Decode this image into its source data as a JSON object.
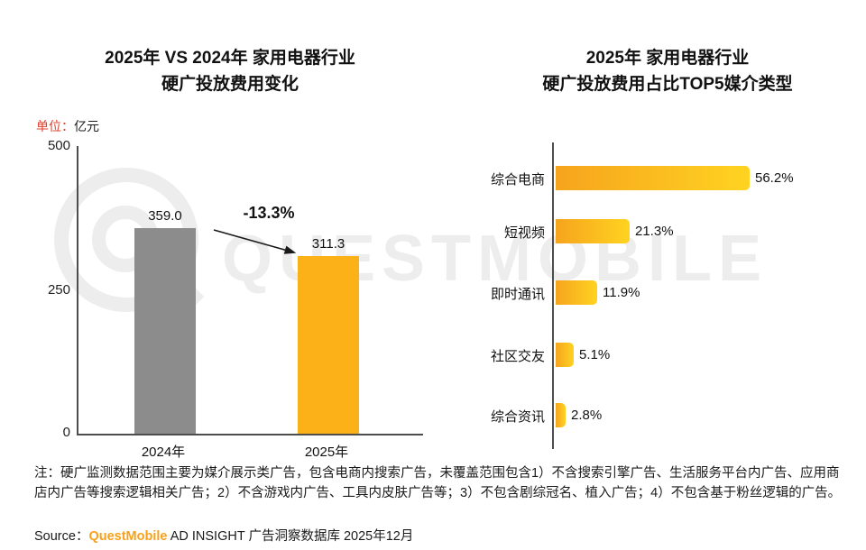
{
  "watermark": {
    "text": "QUESTMOBILE"
  },
  "chart_data": [
    {
      "type": "bar",
      "title": "2025年 VS 2024年 家用电器行业 硬广投放费用变化",
      "title_lines": [
        "2025年 VS 2024年 家用电器行业",
        "硬广投放费用变化"
      ],
      "unit_prefix": "单位：",
      "unit": "亿元",
      "categories": [
        "2024年",
        "2025年"
      ],
      "values": [
        359.0,
        311.3
      ],
      "value_labels": [
        "359.0",
        "311.3"
      ],
      "bar_colors": [
        "#8c8c8c",
        "#fbb117"
      ],
      "ylim": [
        0,
        500
      ],
      "ytick_labels": [
        "500",
        "250",
        "0"
      ],
      "annotation": "-13.3%",
      "grid": false,
      "legend": "none"
    },
    {
      "type": "bar",
      "orientation": "horizontal",
      "title": "2025年 家用电器行业 硬广投放费用占比TOP5媒介类型",
      "title_lines": [
        "2025年 家用电器行业",
        "硬广投放费用占比TOP5媒介类型"
      ],
      "categories": [
        "综合电商",
        "短视频",
        "即时通讯",
        "社区交友",
        "综合资讯"
      ],
      "values": [
        56.2,
        21.3,
        11.9,
        5.1,
        2.8
      ],
      "value_labels": [
        "56.2%",
        "21.3%",
        "11.9%",
        "5.1%",
        "2.8%"
      ],
      "bar_gradient": [
        "#f6a41d",
        "#ffd321"
      ],
      "xlim": [
        0,
        60
      ],
      "grid": false,
      "legend": "none"
    }
  ],
  "footer": {
    "note": "注：硬广监测数据范围主要为媒介展示类广告，包含电商内搜索广告，未覆盖范围包含1）不含搜索引擎广告、生活服务平台内广告、应用商店内广告等搜索逻辑相关广告；2）不含游戏内广告、工具内皮肤广告等；3）不包含剧综冠名、植入广告；4）不包含基于粉丝逻辑的广告。",
    "source_prefix": "Source：",
    "source_brand": "QuestMobile",
    "source_rest": " AD INSIGHT 广告洞察数据库 2025年12月"
  }
}
